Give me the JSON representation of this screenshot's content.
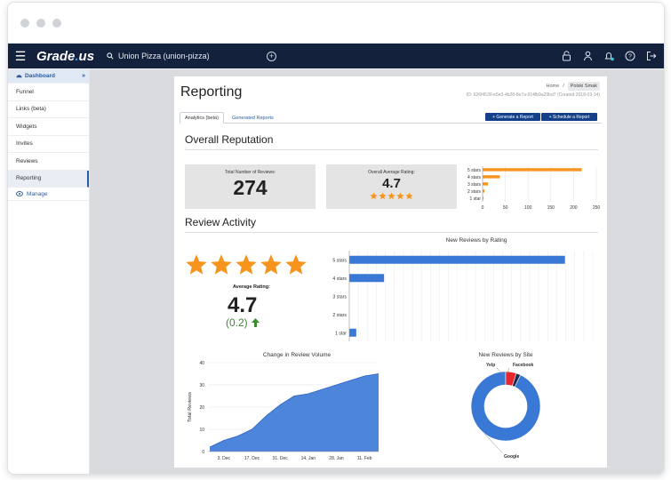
{
  "topnav": {
    "logo_text": "Grade",
    "logo_dot": ".",
    "logo_suffix": "us",
    "search_text": "Union Pizza (union-pizza)"
  },
  "sidebar": {
    "header_label": "Dashboard",
    "items": [
      {
        "label": "Funnel"
      },
      {
        "label": "Links (beta)"
      },
      {
        "label": "Widgets"
      },
      {
        "label": "Invites"
      },
      {
        "label": "Reviews"
      },
      {
        "label": "Reporting"
      }
    ],
    "manage_label": "Manage",
    "active_item": "Reporting"
  },
  "page": {
    "title": "Reporting",
    "breadcrumb_home": "Home",
    "breadcrumb_current": "Polski Smak",
    "meta": "ID: 626f4530-e5e3-4b28-8e7a-914fb9a29bd7 (Created 2018-03-14)",
    "tabs": [
      {
        "label": "Analytics (beta)"
      },
      {
        "label": "Generated Reports"
      }
    ],
    "generate_button": "+ Generate a Report",
    "schedule_button": "+ Schedule a Report"
  },
  "overall": {
    "title": "Overall Reputation",
    "total_label": "Total Number of Reviews:",
    "total_value": "274",
    "avg_label": "Overall Average Rating:",
    "avg_value": "4.7"
  },
  "activity": {
    "title": "Review Activity",
    "avg_label": "Average Rating:",
    "avg_value": "4.7",
    "change": "(0.2)"
  },
  "colors": {
    "nav_bg": "#14213d",
    "accent_blue": "#2b5c9c",
    "bar_orange": "#f7941d",
    "bar_blue": "#3a78d6",
    "star": "#f7941d",
    "up_green": "#3a8a2e"
  },
  "chart_data": [
    {
      "type": "bar",
      "title": "",
      "orientation": "horizontal",
      "categories": [
        "5 stars",
        "4 stars",
        "3 stars",
        "2 stars",
        "1 star"
      ],
      "values": [
        218,
        38,
        12,
        4,
        2
      ],
      "xlim": [
        0,
        250
      ],
      "xticks": [
        "0",
        "50",
        "100",
        "150",
        "200",
        "250"
      ]
    },
    {
      "type": "bar",
      "title": "New Reviews by Rating",
      "orientation": "horizontal",
      "categories": [
        "5 stars",
        "4 stars",
        "3 stars",
        "2 stars",
        "1 star"
      ],
      "values": [
        31,
        5,
        0,
        0,
        1
      ],
      "xlim": [
        0,
        35
      ]
    },
    {
      "type": "area",
      "title": "Change in Review Volume",
      "ylabel": "Total Reviews",
      "ylim": [
        0,
        40
      ],
      "yticks": [
        "0",
        "10",
        "20",
        "30",
        "40"
      ],
      "xticks": [
        "3. Dec",
        "17. Dec",
        "31. Dec",
        "14. Jan",
        "28. Jan",
        "11. Feb"
      ],
      "x": [
        "26. Nov",
        "3. Dec",
        "10. Dec",
        "17. Dec",
        "24. Dec",
        "31. Dec",
        "7. Jan",
        "14. Jan",
        "21. Jan",
        "28. Jan",
        "4. Feb",
        "11. Feb",
        "14. Feb"
      ],
      "values": [
        2,
        5,
        7,
        10,
        16,
        21,
        25,
        26,
        28,
        30,
        32,
        34,
        35
      ]
    },
    {
      "type": "pie",
      "title": "New Reviews by Site",
      "categories": [
        "Google",
        "Yelp",
        "Facebook"
      ],
      "values": [
        93,
        5,
        2
      ]
    }
  ]
}
